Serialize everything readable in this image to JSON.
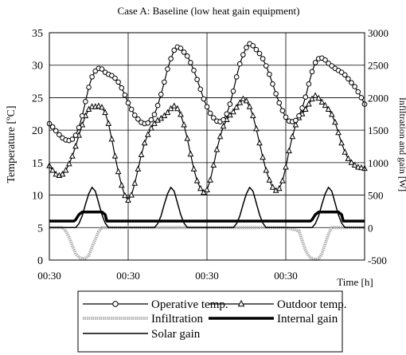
{
  "chart_data": {
    "type": "line",
    "title": "Case A: Baseline (low heat gain equipment)",
    "ylabel": "Temperature [ºC]",
    "y2label": "Infiltration and gain [W]",
    "xlabel": "Time [h]",
    "ylim": [
      0,
      35
    ],
    "y2lim": [
      -500,
      3000
    ],
    "yticks": [
      "0",
      "5",
      "10",
      "15",
      "20",
      "25",
      "30",
      "35"
    ],
    "y2ticks": [
      "-500",
      "0",
      "500",
      "1000",
      "1500",
      "2000",
      "2500",
      "3000"
    ],
    "xticks": [
      "00:30",
      "00:30",
      "00:30",
      "00:30"
    ],
    "xlim": [
      0,
      96
    ],
    "grid": true,
    "legend_position": "bottom",
    "series": [
      {
        "name": "Operative temp.",
        "axis": "left",
        "marker": "circle",
        "x": [
          0,
          1,
          2,
          3,
          4,
          5,
          6,
          7,
          8,
          9,
          10,
          11,
          12,
          13,
          14,
          15,
          16,
          17,
          18,
          19,
          20,
          21,
          22,
          23,
          24,
          25,
          26,
          27,
          28,
          29,
          30,
          31,
          32,
          33,
          34,
          35,
          36,
          37,
          38,
          39,
          40,
          41,
          42,
          43,
          44,
          45,
          46,
          47,
          48,
          49,
          50,
          51,
          52,
          53,
          54,
          55,
          56,
          57,
          58,
          59,
          60,
          61,
          62,
          63,
          64,
          65,
          66,
          67,
          68,
          69,
          70,
          71,
          72,
          73,
          74,
          75,
          76,
          77,
          78,
          79,
          80,
          81,
          82,
          83,
          84,
          85,
          86,
          87,
          88,
          89,
          90,
          91,
          92,
          93,
          94,
          95,
          96
        ],
        "values": [
          21.0,
          20.5,
          19.9,
          19.3,
          18.8,
          18.5,
          18.4,
          18.6,
          19.2,
          20.4,
          22.2,
          24.4,
          26.6,
          28.2,
          29.1,
          29.5,
          29.4,
          28.9,
          28.6,
          28.4,
          28.0,
          27.4,
          26.5,
          25.4,
          24.2,
          23.2,
          22.3,
          21.7,
          21.2,
          21.0,
          21.1,
          21.6,
          22.4,
          23.8,
          25.5,
          27.4,
          29.4,
          31.0,
          32.3,
          32.8,
          32.6,
          32.0,
          31.4,
          30.4,
          29.2,
          27.8,
          26.3,
          24.8,
          23.6,
          22.6,
          21.9,
          21.4,
          21.3,
          21.6,
          22.5,
          24.0,
          26.0,
          28.2,
          30.2,
          31.6,
          32.7,
          33.3,
          33.0,
          32.4,
          31.8,
          31.0,
          29.9,
          28.6,
          27.1,
          25.6,
          24.2,
          23.0,
          22.0,
          21.4,
          21.3,
          21.5,
          22.2,
          23.4,
          25.1,
          27.1,
          29.0,
          30.4,
          31.0,
          31.1,
          30.8,
          30.3,
          29.9,
          29.5,
          29.2,
          28.9,
          28.5,
          27.9,
          27.3,
          26.7,
          25.9,
          25.0,
          24.0
        ],
        "color": "#000000"
      },
      {
        "name": "Outdoor temp.",
        "axis": "left",
        "marker": "triangle",
        "x": [
          0,
          1,
          2,
          3,
          4,
          5,
          6,
          7,
          8,
          9,
          10,
          11,
          12,
          13,
          14,
          15,
          16,
          17,
          18,
          19,
          20,
          21,
          22,
          23,
          24,
          25,
          26,
          27,
          28,
          29,
          30,
          31,
          32,
          33,
          34,
          35,
          36,
          37,
          38,
          39,
          40,
          41,
          42,
          43,
          44,
          45,
          46,
          47,
          48,
          49,
          50,
          51,
          52,
          53,
          54,
          55,
          56,
          57,
          58,
          59,
          60,
          61,
          62,
          63,
          64,
          65,
          66,
          67,
          68,
          69,
          70,
          71,
          72,
          73,
          74,
          75,
          76,
          77,
          78,
          79,
          80,
          81,
          82,
          83,
          84,
          85,
          86,
          87,
          88,
          89,
          90,
          91,
          92,
          93,
          94,
          95,
          96
        ],
        "values": [
          14.5,
          13.8,
          13.2,
          13.0,
          13.2,
          13.8,
          14.8,
          16.0,
          17.5,
          19.2,
          20.8,
          22.2,
          23.2,
          23.6,
          23.6,
          23.7,
          23.5,
          22.7,
          21.0,
          18.6,
          16.0,
          13.6,
          11.5,
          9.9,
          9.2,
          10.0,
          11.8,
          14.0,
          16.2,
          18.0,
          19.3,
          20.3,
          21.0,
          21.5,
          21.8,
          22.2,
          22.7,
          23.3,
          23.7,
          23.3,
          22.4,
          20.8,
          18.7,
          16.3,
          14.0,
          12.2,
          11.0,
          10.4,
          10.8,
          12.3,
          14.6,
          17.0,
          19.0,
          20.6,
          21.6,
          22.3,
          22.8,
          23.5,
          24.2,
          24.8,
          24.5,
          23.6,
          22.2,
          20.2,
          18.0,
          15.8,
          13.8,
          12.3,
          11.2,
          10.7,
          11.0,
          12.2,
          14.3,
          16.8,
          19.0,
          20.8,
          21.9,
          22.5,
          23.2,
          24.0,
          24.8,
          25.3,
          24.9,
          24.3,
          23.8,
          23.2,
          22.4,
          21.2,
          19.6,
          18.0,
          16.6,
          15.6,
          15.0,
          14.6,
          14.3,
          14.2,
          14.1
        ],
        "color": "#000000"
      },
      {
        "name": "Infiltration",
        "axis": "right",
        "x": [
          0,
          4,
          5,
          6,
          7,
          8,
          9,
          10,
          11,
          12,
          13,
          14,
          15,
          16,
          17,
          18,
          19,
          20,
          24,
          48,
          72,
          76,
          77,
          78,
          79,
          80,
          81,
          82,
          83,
          84,
          85,
          86,
          87,
          88,
          96
        ],
        "values": [
          0,
          0,
          -50,
          -150,
          -280,
          -400,
          -460,
          -480,
          -470,
          -430,
          -300,
          -180,
          -60,
          0,
          0,
          0,
          0,
          0,
          0,
          0,
          0,
          -50,
          -200,
          -350,
          -440,
          -480,
          -490,
          -480,
          -400,
          -250,
          -100,
          0,
          0,
          0,
          0
        ],
        "color": "#b0b0b0"
      },
      {
        "name": "Internal gain",
        "axis": "right",
        "x": [
          0,
          7.5,
          8,
          9,
          10,
          11,
          12,
          13,
          14,
          15,
          16,
          17,
          17.5,
          24,
          31.5,
          32,
          40,
          41.5,
          48,
          55.5,
          56,
          64,
          65.5,
          72,
          79.5,
          80,
          81,
          82,
          83,
          84,
          85,
          86,
          87,
          88,
          89,
          89.5,
          96
        ],
        "values": [
          100,
          100,
          120,
          200,
          240,
          240,
          240,
          240,
          240,
          240,
          240,
          200,
          100,
          100,
          100,
          100,
          100,
          100,
          100,
          100,
          100,
          100,
          100,
          100,
          100,
          120,
          200,
          240,
          240,
          240,
          240,
          240,
          240,
          240,
          200,
          100,
          100
        ],
        "color": "#000000"
      },
      {
        "name": "Solar gain",
        "axis": "right",
        "x": [
          0,
          8,
          9,
          10,
          11,
          12,
          13,
          14,
          15,
          16,
          17,
          18,
          24,
          32,
          33,
          34,
          35,
          36,
          37,
          38,
          39,
          40,
          41,
          42,
          48,
          56,
          57,
          58,
          59,
          60,
          61,
          62,
          63,
          64,
          65,
          66,
          72,
          80,
          81,
          82,
          83,
          84,
          85,
          86,
          87,
          88,
          89,
          90,
          96
        ],
        "values": [
          0,
          0,
          60,
          180,
          360,
          520,
          620,
          560,
          380,
          200,
          70,
          0,
          0,
          0,
          60,
          180,
          360,
          520,
          620,
          560,
          380,
          200,
          70,
          0,
          0,
          0,
          60,
          180,
          360,
          520,
          620,
          560,
          380,
          200,
          70,
          0,
          0,
          0,
          60,
          180,
          360,
          520,
          620,
          560,
          380,
          200,
          70,
          0,
          0
        ],
        "color": "#000000"
      }
    ]
  }
}
